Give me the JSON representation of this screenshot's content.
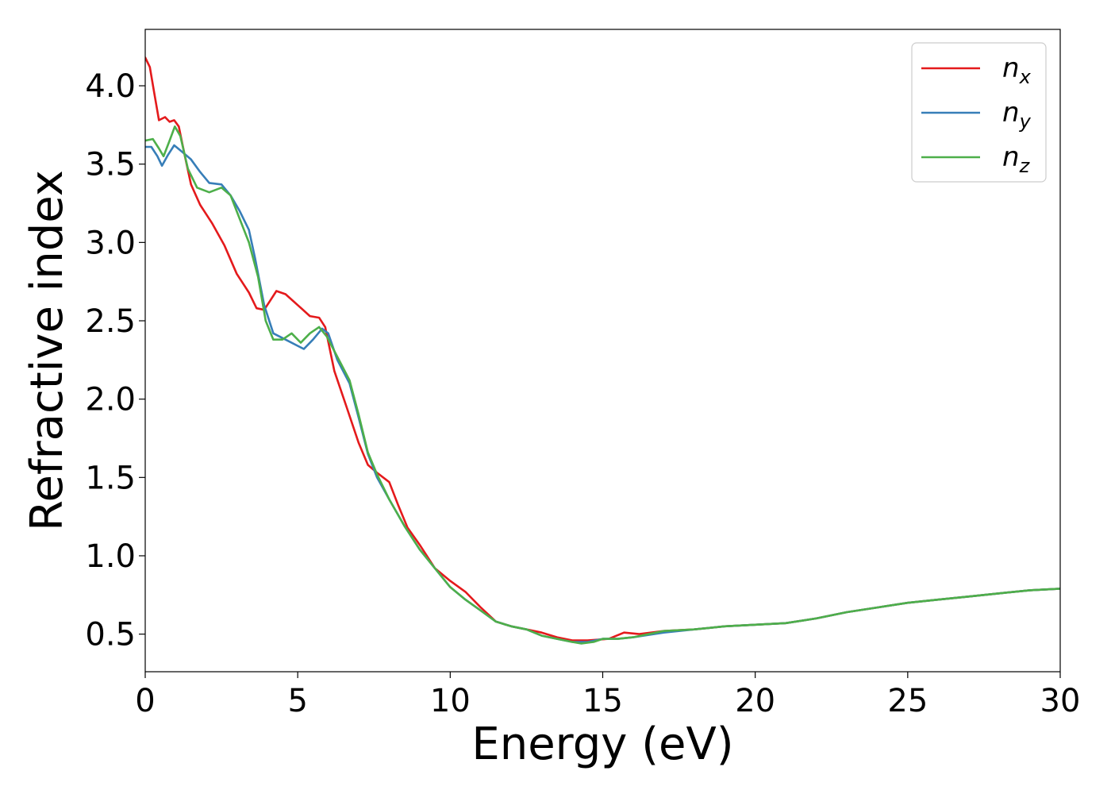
{
  "chart_data": {
    "type": "line",
    "title": "",
    "xlabel": "Energy (eV)",
    "ylabel": "Refractive index",
    "xlim": [
      0,
      30
    ],
    "ylim": [
      0.26,
      4.36
    ],
    "xticks": [
      0,
      5,
      10,
      15,
      20,
      25,
      30
    ],
    "xtick_labels": [
      "0",
      "5",
      "10",
      "15",
      "20",
      "25",
      "30"
    ],
    "yticks": [
      0.5,
      1.0,
      1.5,
      2.0,
      2.5,
      3.0,
      3.5,
      4.0
    ],
    "ytick_labels": [
      "0.5",
      "1.0",
      "1.5",
      "2.0",
      "2.5",
      "3.0",
      "3.5",
      "4.0"
    ],
    "grid": false,
    "legend_position": "top-right",
    "series": [
      {
        "name": "n",
        "subscript": "x",
        "color": "#e41a1c",
        "points": [
          [
            0,
            4.18
          ],
          [
            0.15,
            4.12
          ],
          [
            0.3,
            3.95
          ],
          [
            0.45,
            3.78
          ],
          [
            0.65,
            3.8
          ],
          [
            0.8,
            3.77
          ],
          [
            0.95,
            3.78
          ],
          [
            1.1,
            3.74
          ],
          [
            1.3,
            3.55
          ],
          [
            1.5,
            3.37
          ],
          [
            1.8,
            3.24
          ],
          [
            2.2,
            3.12
          ],
          [
            2.6,
            2.98
          ],
          [
            3.0,
            2.8
          ],
          [
            3.4,
            2.68
          ],
          [
            3.65,
            2.58
          ],
          [
            3.9,
            2.57
          ],
          [
            4.1,
            2.63
          ],
          [
            4.3,
            2.69
          ],
          [
            4.6,
            2.67
          ],
          [
            5.0,
            2.6
          ],
          [
            5.4,
            2.53
          ],
          [
            5.7,
            2.52
          ],
          [
            5.9,
            2.46
          ],
          [
            6.2,
            2.18
          ],
          [
            6.6,
            1.95
          ],
          [
            7.0,
            1.72
          ],
          [
            7.3,
            1.58
          ],
          [
            7.6,
            1.53
          ],
          [
            8.0,
            1.47
          ],
          [
            8.3,
            1.32
          ],
          [
            8.6,
            1.18
          ],
          [
            9.0,
            1.07
          ],
          [
            9.5,
            0.92
          ],
          [
            10.0,
            0.84
          ],
          [
            10.5,
            0.77
          ],
          [
            11.0,
            0.67
          ],
          [
            11.5,
            0.58
          ],
          [
            12.0,
            0.55
          ],
          [
            12.5,
            0.53
          ],
          [
            13.0,
            0.51
          ],
          [
            13.5,
            0.48
          ],
          [
            14.0,
            0.46
          ],
          [
            14.5,
            0.46
          ],
          [
            15.2,
            0.47
          ],
          [
            15.7,
            0.51
          ],
          [
            16.2,
            0.5
          ],
          [
            17.0,
            0.52
          ],
          [
            18.0,
            0.53
          ],
          [
            19.0,
            0.55
          ],
          [
            20.0,
            0.56
          ],
          [
            21.0,
            0.57
          ],
          [
            22.0,
            0.6
          ],
          [
            23.0,
            0.64
          ],
          [
            24.0,
            0.67
          ],
          [
            25.0,
            0.7
          ],
          [
            26.0,
            0.72
          ],
          [
            27.0,
            0.74
          ],
          [
            28.0,
            0.76
          ],
          [
            29.0,
            0.78
          ],
          [
            30.0,
            0.79
          ]
        ]
      },
      {
        "name": "n",
        "subscript": "y",
        "color": "#377eb8",
        "points": [
          [
            0,
            3.61
          ],
          [
            0.2,
            3.61
          ],
          [
            0.4,
            3.55
          ],
          [
            0.55,
            3.49
          ],
          [
            0.75,
            3.56
          ],
          [
            0.95,
            3.62
          ],
          [
            1.2,
            3.58
          ],
          [
            1.5,
            3.53
          ],
          [
            1.8,
            3.45
          ],
          [
            2.1,
            3.38
          ],
          [
            2.5,
            3.37
          ],
          [
            2.8,
            3.3
          ],
          [
            3.1,
            3.2
          ],
          [
            3.4,
            3.08
          ],
          [
            3.6,
            2.9
          ],
          [
            3.9,
            2.6
          ],
          [
            4.2,
            2.42
          ],
          [
            4.6,
            2.38
          ],
          [
            5.0,
            2.34
          ],
          [
            5.2,
            2.32
          ],
          [
            5.5,
            2.38
          ],
          [
            5.8,
            2.45
          ],
          [
            6.0,
            2.42
          ],
          [
            6.3,
            2.25
          ],
          [
            6.7,
            2.1
          ],
          [
            7.0,
            1.88
          ],
          [
            7.3,
            1.65
          ],
          [
            7.6,
            1.5
          ],
          [
            8.0,
            1.36
          ],
          [
            8.5,
            1.19
          ],
          [
            9.0,
            1.04
          ],
          [
            9.5,
            0.92
          ],
          [
            10.0,
            0.8
          ],
          [
            10.5,
            0.72
          ],
          [
            11.0,
            0.65
          ],
          [
            11.5,
            0.58
          ],
          [
            12.0,
            0.55
          ],
          [
            12.5,
            0.53
          ],
          [
            13.0,
            0.49
          ],
          [
            13.5,
            0.47
          ],
          [
            14.0,
            0.45
          ],
          [
            14.5,
            0.45
          ],
          [
            15.0,
            0.47
          ],
          [
            15.5,
            0.47
          ],
          [
            16.0,
            0.48
          ],
          [
            17.0,
            0.51
          ],
          [
            18.0,
            0.53
          ],
          [
            19.0,
            0.55
          ],
          [
            20.0,
            0.56
          ],
          [
            21.0,
            0.57
          ],
          [
            22.0,
            0.6
          ],
          [
            23.0,
            0.64
          ],
          [
            24.0,
            0.67
          ],
          [
            25.0,
            0.7
          ],
          [
            26.0,
            0.72
          ],
          [
            27.0,
            0.74
          ],
          [
            28.0,
            0.76
          ],
          [
            29.0,
            0.78
          ],
          [
            30.0,
            0.79
          ]
        ]
      },
      {
        "name": "n",
        "subscript": "z",
        "color": "#4daf4a",
        "points": [
          [
            0,
            3.65
          ],
          [
            0.25,
            3.66
          ],
          [
            0.45,
            3.6
          ],
          [
            0.6,
            3.55
          ],
          [
            0.8,
            3.65
          ],
          [
            0.97,
            3.74
          ],
          [
            1.15,
            3.68
          ],
          [
            1.4,
            3.47
          ],
          [
            1.7,
            3.35
          ],
          [
            2.1,
            3.32
          ],
          [
            2.5,
            3.35
          ],
          [
            2.8,
            3.3
          ],
          [
            3.1,
            3.15
          ],
          [
            3.4,
            3.0
          ],
          [
            3.7,
            2.78
          ],
          [
            3.95,
            2.5
          ],
          [
            4.2,
            2.38
          ],
          [
            4.5,
            2.38
          ],
          [
            4.8,
            2.42
          ],
          [
            5.1,
            2.36
          ],
          [
            5.4,
            2.42
          ],
          [
            5.7,
            2.46
          ],
          [
            5.95,
            2.4
          ],
          [
            6.3,
            2.27
          ],
          [
            6.7,
            2.12
          ],
          [
            7.0,
            1.9
          ],
          [
            7.3,
            1.66
          ],
          [
            7.6,
            1.52
          ],
          [
            8.0,
            1.36
          ],
          [
            8.5,
            1.19
          ],
          [
            9.0,
            1.04
          ],
          [
            9.5,
            0.92
          ],
          [
            10.0,
            0.8
          ],
          [
            10.5,
            0.72
          ],
          [
            11.0,
            0.65
          ],
          [
            11.5,
            0.58
          ],
          [
            12.0,
            0.55
          ],
          [
            12.5,
            0.53
          ],
          [
            13.0,
            0.49
          ],
          [
            13.5,
            0.47
          ],
          [
            14.0,
            0.45
          ],
          [
            14.3,
            0.44
          ],
          [
            14.7,
            0.45
          ],
          [
            15.0,
            0.47
          ],
          [
            15.5,
            0.47
          ],
          [
            16.0,
            0.48
          ],
          [
            17.0,
            0.52
          ],
          [
            18.0,
            0.53
          ],
          [
            19.0,
            0.55
          ],
          [
            20.0,
            0.56
          ],
          [
            21.0,
            0.57
          ],
          [
            22.0,
            0.6
          ],
          [
            23.0,
            0.64
          ],
          [
            24.0,
            0.67
          ],
          [
            25.0,
            0.7
          ],
          [
            26.0,
            0.72
          ],
          [
            27.0,
            0.74
          ],
          [
            28.0,
            0.76
          ],
          [
            29.0,
            0.78
          ],
          [
            30.0,
            0.79
          ]
        ]
      }
    ]
  }
}
